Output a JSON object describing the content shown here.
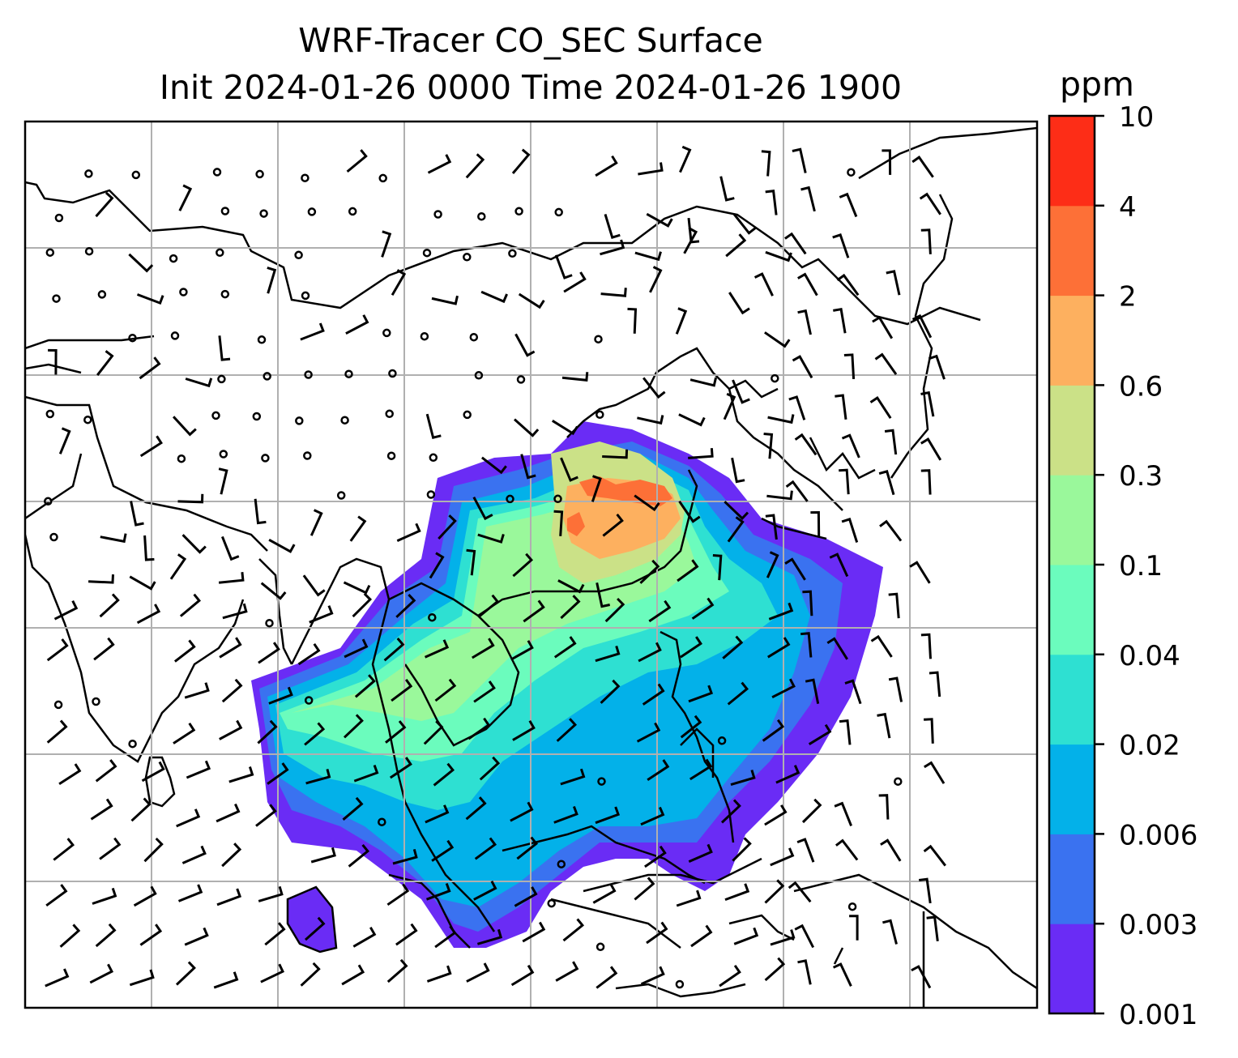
{
  "title_line1": "WRF-Tracer CO_SEC Surface",
  "title_line2": "Init 2024-01-26 0000 Time 2024-01-26 1900",
  "colorbar": {
    "unit": "ppm",
    "ticks": [
      "0.001",
      "0.003",
      "0.006",
      "0.02",
      "0.04",
      "0.1",
      "0.3",
      "0.6",
      "2",
      "4",
      "10"
    ],
    "colors": [
      "#6a2cf5",
      "#3a72f0",
      "#03b1e9",
      "#2ee0d2",
      "#6bfcbd",
      "#9af89b",
      "#cbe187",
      "#fdb05f",
      "#fd7037",
      "#fd2d17"
    ]
  },
  "colors": {
    "coast": "#000000",
    "grid": "#b0b0b0"
  }
}
